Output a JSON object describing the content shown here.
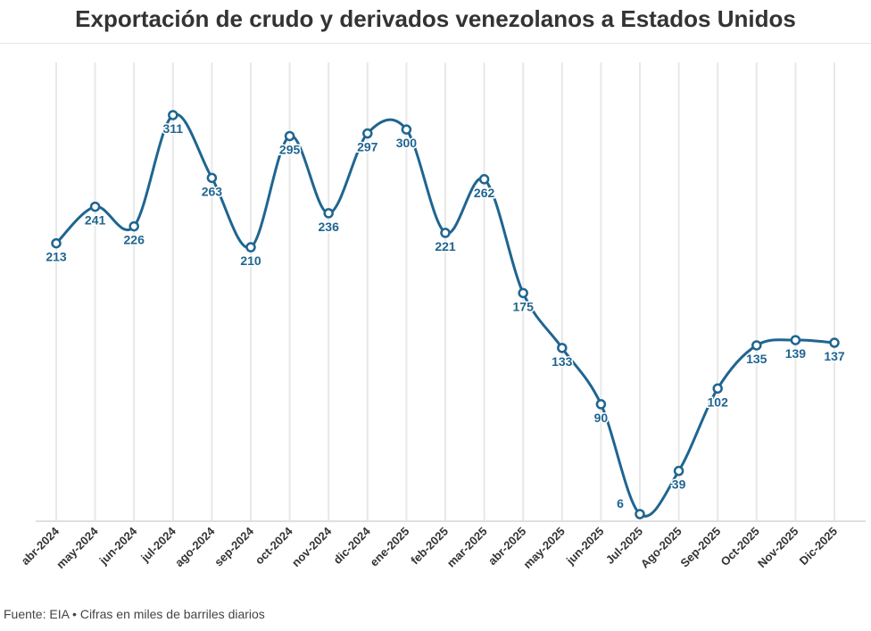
{
  "chart_data": {
    "type": "line",
    "title": "Exportación de crudo y derivados venezolanos a Estados Unidos",
    "categories": [
      "abr-2024",
      "may-2024",
      "jun-2024",
      "jul-2024",
      "ago-2024",
      "sep-2024",
      "oct-2024",
      "nov-2024",
      "dic-2024",
      "ene-2025",
      "feb-2025",
      "mar-2025",
      "abr-2025",
      "may-2025",
      "jun-2025",
      "Jul-2025",
      "Ago-2025",
      "Sep-2025",
      "Oct-2025",
      "Nov-2025",
      "Dic-2025"
    ],
    "values": [
      213,
      241,
      226,
      311,
      263,
      210,
      295,
      236,
      297,
      300,
      221,
      262,
      175,
      133,
      90,
      6,
      39,
      102,
      135,
      139,
      137
    ],
    "xlabel": "",
    "ylabel": "",
    "grid": "vertical",
    "smooth": true,
    "data_labels": true,
    "color": "#1f6590"
  },
  "footer": "Fuente: EIA • Cifras en miles de barriles diarios"
}
